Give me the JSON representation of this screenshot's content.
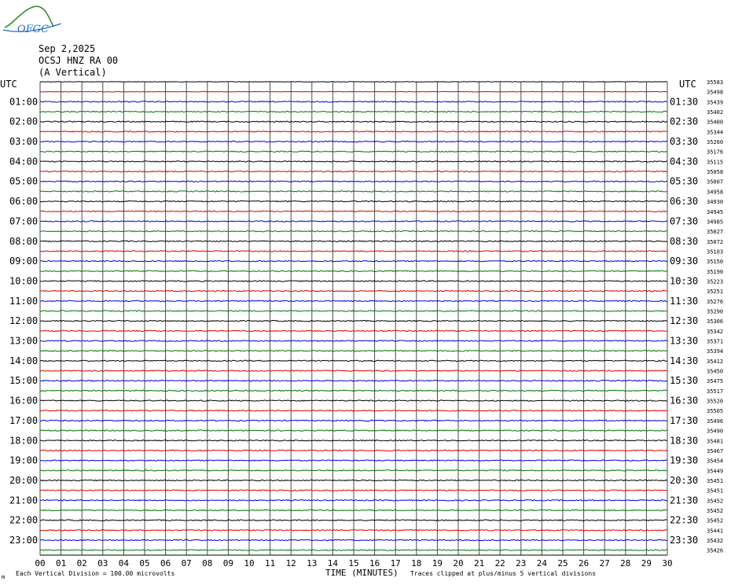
{
  "logo": {
    "text": "OFGC",
    "icon": "mountain-logo-icon"
  },
  "header": {
    "date": "Sep 2,2025",
    "station": "OCSJ HNZ RA 00",
    "component": "(A Vertical)"
  },
  "axis": {
    "left_unit": "UTC",
    "right_unit": "UTC",
    "xlabel": "TIME (MINUTES)",
    "x_ticks": [
      "00",
      "01",
      "02",
      "03",
      "04",
      "05",
      "06",
      "07",
      "08",
      "09",
      "10",
      "11",
      "12",
      "13",
      "14",
      "15",
      "16",
      "17",
      "18",
      "19",
      "20",
      "21",
      "22",
      "23",
      "24",
      "25",
      "26",
      "27",
      "28",
      "29",
      "30"
    ]
  },
  "footer": {
    "scale_note": "Each Vertical Division =  100.00 microvolts",
    "clip_note": "Traces clipped at plus/minus 5 vertical divisions",
    "corner_mark": "m"
  },
  "colors": {
    "trace_cycle": [
      "#000000",
      "#e00000",
      "#0000dd",
      "#007700"
    ],
    "grid": "#4a4a4a"
  },
  "chart_data": {
    "type": "helicorder",
    "xlim": [
      0,
      30
    ],
    "rows_per_hour": 2,
    "left_labels": [
      "01:00",
      "02:00",
      "03:00",
      "04:00",
      "05:00",
      "06:00",
      "07:00",
      "08:00",
      "09:00",
      "10:00",
      "11:00",
      "12:00",
      "13:00",
      "14:00",
      "15:00",
      "16:00",
      "17:00",
      "18:00",
      "19:00",
      "20:00",
      "21:00",
      "22:00",
      "23:00"
    ],
    "right_labels": [
      "01:30",
      "02:30",
      "03:30",
      "04:30",
      "05:30",
      "06:30",
      "07:30",
      "08:30",
      "09:30",
      "10:30",
      "11:30",
      "12:30",
      "13:30",
      "14:30",
      "15:30",
      "16:30",
      "17:30",
      "18:30",
      "19:30",
      "20:30",
      "21:30",
      "22:30",
      "23:30"
    ],
    "row_values": [
      "35583",
      "35498",
      "35439",
      "35402",
      "35400",
      "35344",
      "35260",
      "35176",
      "35115",
      "35058",
      "35007",
      "34958",
      "34930",
      "34945",
      "34985",
      "35027",
      "35072",
      "35103",
      "35150",
      "35190",
      "35223",
      "35251",
      "35276",
      "35290",
      "35306",
      "35342",
      "35371",
      "35394",
      "35412",
      "35450",
      "35475",
      "35517",
      "35520",
      "35505",
      "35496",
      "35490",
      "35481",
      "35467",
      "35454",
      "35449",
      "35451",
      "35451",
      "35452",
      "35452",
      "35452",
      "35441",
      "35432",
      "35426"
    ]
  }
}
